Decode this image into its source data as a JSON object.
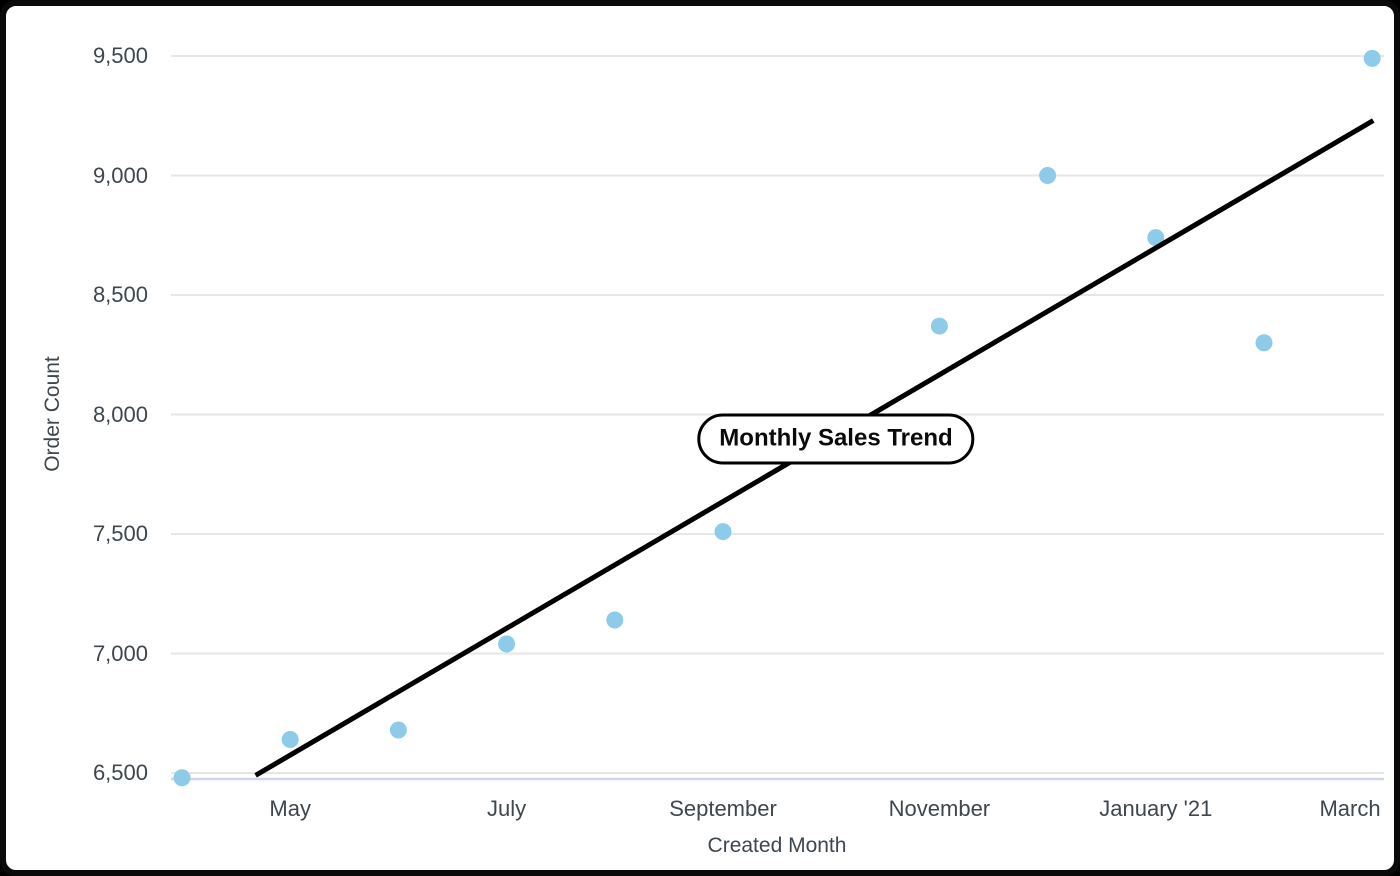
{
  "frame": {
    "background": "#ffffff",
    "border_color": "#0a0a0a"
  },
  "chart_data": {
    "type": "scatter",
    "title": "Monthly Sales Trend",
    "xlabel": "Created Month",
    "ylabel": "Order Count",
    "ylim": [
      6500,
      9500
    ],
    "grid": true,
    "legend": "none",
    "y_ticks": [
      {
        "value": 6500,
        "label": "6,500"
      },
      {
        "value": 7000,
        "label": "7,000"
      },
      {
        "value": 7500,
        "label": "7,500"
      },
      {
        "value": 8000,
        "label": "8,000"
      },
      {
        "value": 8500,
        "label": "8,500"
      },
      {
        "value": 9000,
        "label": "9,000"
      },
      {
        "value": 9500,
        "label": "9,500"
      }
    ],
    "x_tick_labels": [
      {
        "label": "May",
        "month_index": 1
      },
      {
        "label": "July",
        "month_index": 3
      },
      {
        "label": "September",
        "month_index": 5
      },
      {
        "label": "November",
        "month_index": 7
      },
      {
        "label": "January '21",
        "month_index": 9
      },
      {
        "label": "March",
        "month_index": 11
      }
    ],
    "points": [
      {
        "month": "April",
        "month_index": 0,
        "value": 6480
      },
      {
        "month": "May",
        "month_index": 1,
        "value": 6640
      },
      {
        "month": "June",
        "month_index": 2,
        "value": 6680
      },
      {
        "month": "July",
        "month_index": 3,
        "value": 7040
      },
      {
        "month": "August",
        "month_index": 4,
        "value": 7140
      },
      {
        "month": "September",
        "month_index": 5,
        "value": 7510
      },
      {
        "month": "November",
        "month_index": 7,
        "value": 8370
      },
      {
        "month": "December",
        "month_index": 8,
        "value": 9000
      },
      {
        "month": "January '21",
        "month_index": 9,
        "value": 8740
      },
      {
        "month": "February",
        "month_index": 10,
        "value": 8300
      },
      {
        "month": "March",
        "month_index": 11,
        "value": 9490
      }
    ],
    "trend_line": {
      "start": {
        "month_index": 0.68,
        "value": 6490
      },
      "end": {
        "month_index": 11.01,
        "value": 9230
      }
    },
    "colors": {
      "point": "#8dcbe9",
      "trend": "#000000",
      "grid": "#e6e6e6",
      "axis_line": "#ccd6e8",
      "text": "#3e474d"
    }
  }
}
